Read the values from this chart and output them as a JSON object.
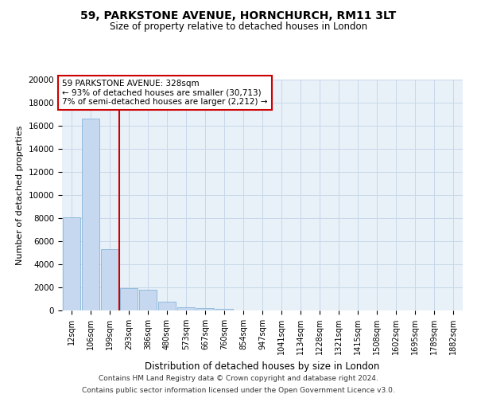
{
  "title": "59, PARKSTONE AVENUE, HORNCHURCH, RM11 3LT",
  "subtitle": "Size of property relative to detached houses in London",
  "xlabel": "Distribution of detached houses by size in London",
  "ylabel": "Number of detached properties",
  "bar_color": "#c5d8ef",
  "bar_edge_color": "#7aadd4",
  "grid_color": "#c8d8ea",
  "background_color": "#e8f0f8",
  "categories": [
    "12sqm",
    "106sqm",
    "199sqm",
    "293sqm",
    "386sqm",
    "480sqm",
    "573sqm",
    "667sqm",
    "760sqm",
    "854sqm",
    "947sqm",
    "1041sqm",
    "1134sqm",
    "1228sqm",
    "1321sqm",
    "1415sqm",
    "1508sqm",
    "1602sqm",
    "1695sqm",
    "1789sqm",
    "1882sqm"
  ],
  "values": [
    8100,
    16600,
    5300,
    1900,
    1800,
    750,
    300,
    200,
    150,
    0,
    0,
    0,
    0,
    0,
    0,
    0,
    0,
    0,
    0,
    0,
    0
  ],
  "ylim": [
    0,
    20000
  ],
  "yticks": [
    0,
    2000,
    4000,
    6000,
    8000,
    10000,
    12000,
    14000,
    16000,
    18000,
    20000
  ],
  "annotation_line1": "59 PARKSTONE AVENUE: 328sqm",
  "annotation_line2": "← 93% of detached houses are smaller (30,713)",
  "annotation_line3": "7% of semi-detached houses are larger (2,212) →",
  "red_line_x": 2.5,
  "annotation_box_color": "#ffffff",
  "annotation_border_color": "#cc0000",
  "footer_line1": "Contains HM Land Registry data © Crown copyright and database right 2024.",
  "footer_line2": "Contains public sector information licensed under the Open Government Licence v3.0."
}
